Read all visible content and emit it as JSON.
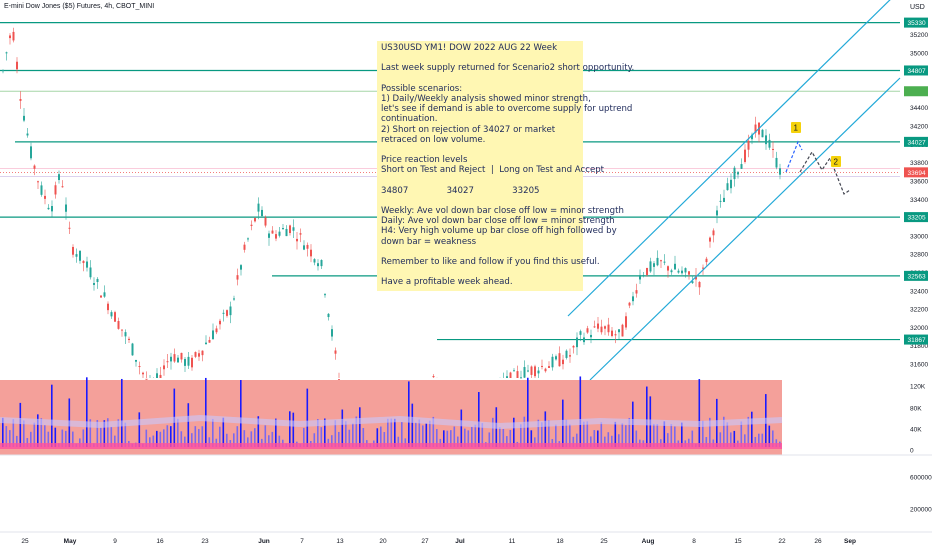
{
  "header": {
    "symbol": "E-mini Dow Jones ($5) Futures, 4h, CBOT_MINI",
    "currency": "USD"
  },
  "note": {
    "lines": [
      "US30USD YM1! DOW 2022 AUG 22 Week",
      "",
      "Last week supply returned for Scenario2 short opportunity.",
      "",
      "Possible scenarios:",
      "1) Daily/Weekly analysis showed minor strength,",
      "let's see if demand is able to overcome supply for uptrend",
      "continuation.",
      "2) Short on rejection of 34027 or market",
      "retraced on low volume.",
      "",
      "Price reaction levels",
      "Short on Test and Reject  |  Long on Test and Accept",
      "",
      "34807              34027              33205",
      "",
      "Weekly: Ave vol down bar close off low = minor strength",
      "Daily: Ave vol down bar close off low = minor strength",
      "H4: Very high volume up bar close off high followed by",
      "down bar = weakness",
      "",
      "Remember to like and follow if you find this useful.",
      "",
      "Have a profitable week ahead."
    ]
  },
  "colors": {
    "level_line": "#089981",
    "channel": "#22a9d8",
    "up_candle": "#26a69a",
    "down_candle": "#ef5350",
    "volume_bg": "#f4a09a",
    "current_price": "#ef5350",
    "scenario_marker": "#f5d20b",
    "path_dash": "#2962ff"
  },
  "chart_data": {
    "type": "candlestick",
    "price_axis_ticks": [
      35200,
      35000,
      34800,
      34600,
      34400,
      34200,
      34000,
      33800,
      33600,
      33400,
      33200,
      33000,
      32800,
      32600,
      32400,
      32200,
      32000,
      31800,
      31600
    ],
    "price_levels": [
      35330,
      34807,
      34027,
      33205,
      32563,
      31867
    ],
    "current_price": 33694,
    "volume_axis_ticks": [
      "120K",
      "80K",
      "40K",
      "0"
    ],
    "lower_axis_ticks": [
      "600000",
      "200000"
    ],
    "x_ticks": [
      "25",
      "May",
      "9",
      "16",
      "23",
      "Jun",
      "7",
      "13",
      "20",
      "27",
      "Jul",
      "11",
      "18",
      "25",
      "Aug",
      "8",
      "15",
      "22",
      "26",
      "Sep"
    ],
    "scenario_markers": [
      "1",
      "2"
    ]
  }
}
